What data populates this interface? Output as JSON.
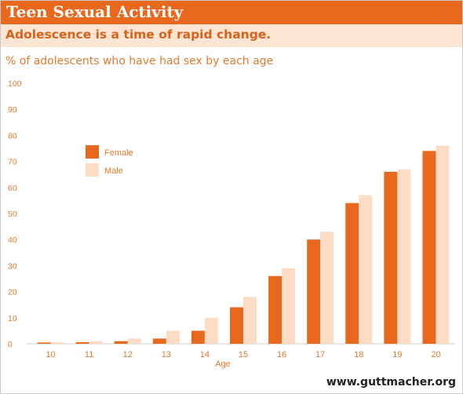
{
  "header": {
    "title": "Teen Sexual Activity",
    "subtitle": "Adolescence is a time of rapid change."
  },
  "description": "% of adolescents who have had sex by each age",
  "source": "www.guttmacher.org",
  "colors": {
    "accent": "#e8691e",
    "subtitle_background": "#fce5d2",
    "female": "#e8691e",
    "male": "#fcdcc4",
    "tick_text": "#e07a2e"
  },
  "chart_data": {
    "type": "bar",
    "title": "",
    "xlabel": "Age",
    "ylabel": "",
    "categories": [
      "10",
      "11",
      "12",
      "13",
      "14",
      "15",
      "16",
      "17",
      "18",
      "19",
      "20"
    ],
    "series": [
      {
        "name": "Female",
        "values": [
          0.5,
          0.6,
          1,
          2,
          5,
          14,
          26,
          40,
          54,
          66,
          74
        ]
      },
      {
        "name": "Male",
        "values": [
          0.6,
          1,
          2,
          5,
          10,
          18,
          29,
          43,
          57,
          67,
          76
        ]
      }
    ],
    "ylim": [
      0,
      100
    ],
    "yticks": [
      0,
      10,
      20,
      30,
      40,
      50,
      60,
      70,
      80,
      90,
      100
    ],
    "grid": false,
    "legend_placement": "top-left"
  }
}
